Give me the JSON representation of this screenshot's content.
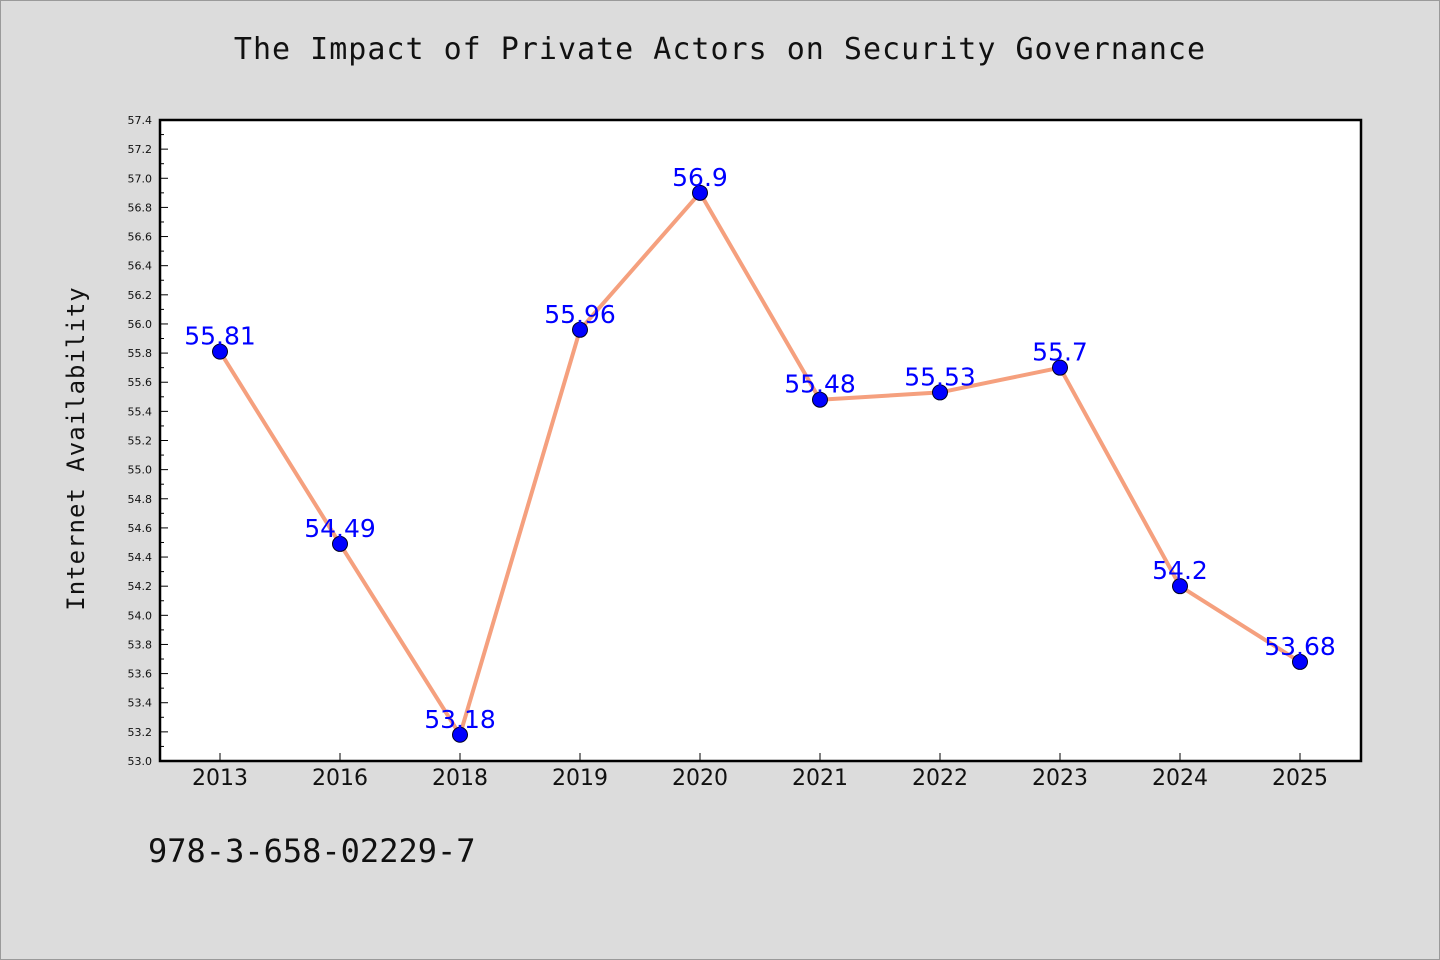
{
  "chart_data": {
    "type": "line",
    "title": "The Impact of Private Actors on Security Governance",
    "xlabel": "",
    "ylabel": "Internet Availability",
    "categories": [
      "2013",
      "2016",
      "2018",
      "2019",
      "2020",
      "2021",
      "2022",
      "2023",
      "2024",
      "2025"
    ],
    "series": [
      {
        "values": [
          55.81,
          54.49,
          53.18,
          55.96,
          56.9,
          55.48,
          55.53,
          55.7,
          54.2,
          53.68
        ],
        "labels": [
          "55.81",
          "54.49",
          "53.18",
          "55.96",
          "56.9",
          "55.48",
          "55.53",
          "55.7",
          "54.2",
          "53.68"
        ],
        "line_color": "#f5a07e",
        "marker_color": "#0000ff"
      }
    ],
    "ylim": [
      53.0,
      57.4
    ],
    "yticks": [
      "53.0",
      "53.2",
      "53.4",
      "53.6",
      "53.8",
      "54.0",
      "54.2",
      "54.4",
      "54.6",
      "54.8",
      "55.0",
      "55.2",
      "55.4",
      "55.6",
      "55.8",
      "56.0",
      "56.2",
      "56.4",
      "56.6",
      "56.8",
      "57.0",
      "57.2",
      "57.4"
    ],
    "grid": false,
    "plot_background": "#ffffff",
    "page_background": "#dcdcdc"
  },
  "footer": {
    "isbn": "978-3-658-02229-7"
  }
}
